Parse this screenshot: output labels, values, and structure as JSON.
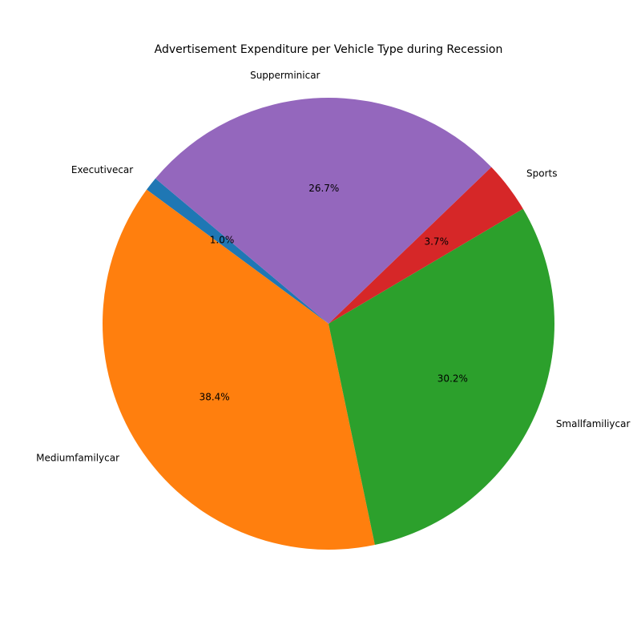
{
  "chart_data": {
    "type": "pie",
    "title": "Advertisement Expenditure per Vehicle Type during Recession",
    "categories": [
      "Executivecar",
      "Mediumfamilycar",
      "Smallfamiliycar",
      "Sports",
      "Supperminicar"
    ],
    "values": [
      1.0,
      38.4,
      30.2,
      3.7,
      26.7
    ],
    "percent_labels": [
      "1.0%",
      "38.4%",
      "30.2%",
      "3.7%",
      "26.7%"
    ],
    "colors": [
      "#1f77b4",
      "#ff7f0e",
      "#2ca02c",
      "#d62728",
      "#9467bd"
    ],
    "start_angle_deg": 140,
    "direction": "counterclockwise",
    "legend": "none"
  }
}
